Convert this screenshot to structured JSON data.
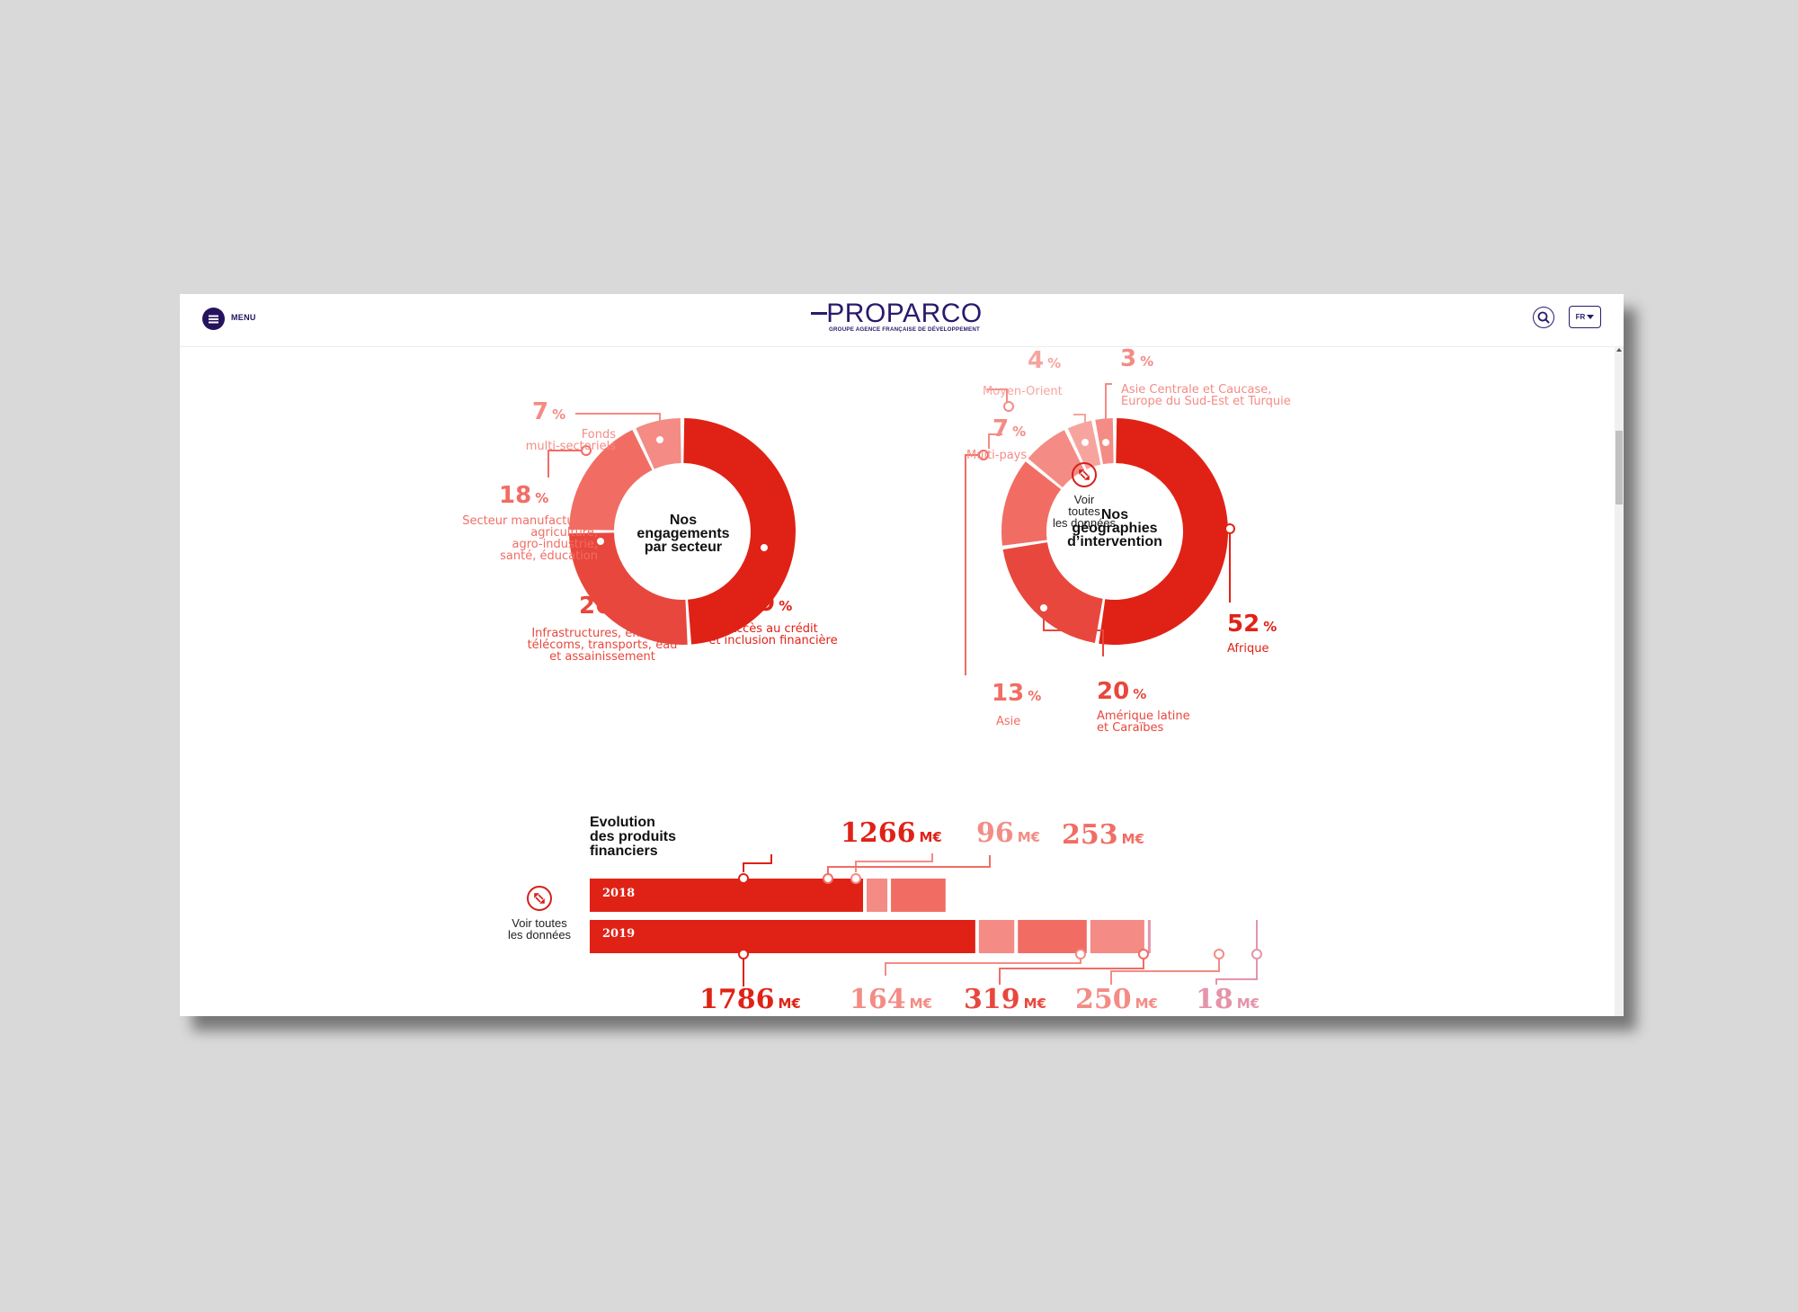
{
  "header": {
    "menu_label": "MENU",
    "logo_title": "PROPARCO",
    "logo_subtitle": "GROUPE AGENCE FRANÇAISE DE DÉVELOPPEMENT",
    "lang": "FR",
    "icons": {
      "menu": "hamburger-icon",
      "search": "search-icon",
      "lang_caret": "caret-down-icon"
    }
  },
  "colors": {
    "brand": "#2a1a6b",
    "red_dark": "#e02216",
    "red_mid": "#e8473d",
    "red_light": "#f16d64",
    "pink": "#f48b85",
    "pink_light": "#f7a49f",
    "mauve": "#e494aa"
  },
  "voir_sector": {
    "line1": "Voir",
    "line2": "toutes",
    "line3": "les données"
  },
  "voir_products": {
    "line1": "Voir toutes",
    "line2": "les données"
  },
  "chart_data": [
    {
      "type": "pie",
      "title": "Nos engagements par secteur",
      "title_lines": [
        "Nos",
        "engagements",
        "par secteur"
      ],
      "categories": [
        "Accès au crédit et inclusion financière",
        "Infrastructures, énergie, télécoms, transports, eau et assainissement",
        "Secteur manufacturier, agriculture, agro-industrie, santé, éducation",
        "Fonds multi-sectoriels"
      ],
      "values": [
        49,
        26,
        18,
        7
      ],
      "unit": "%",
      "labels": [
        {
          "value": "49",
          "unit": "%",
          "lines": [
            "Accès au crédit",
            "et inclusion financière"
          ]
        },
        {
          "value": "26",
          "unit": "%",
          "lines": [
            "Infrastructures, énergie,",
            "télécoms, transports, eau",
            "et assainissement"
          ]
        },
        {
          "value": "18",
          "unit": "%",
          "lines": [
            "Secteur manufacturier,",
            "agriculture,",
            "agro-industrie,",
            "santé, éducation"
          ]
        },
        {
          "value": "7",
          "unit": "%",
          "lines": [
            "Fonds",
            "multi-sectoriels"
          ]
        }
      ]
    },
    {
      "type": "pie",
      "title": "Nos géographies d'intervention",
      "title_lines": [
        "Nos",
        "géographies",
        "d’intervention"
      ],
      "categories": [
        "Afrique",
        "Amérique latine et Caraïbes",
        "Asie",
        "Multi-pays",
        "Moyen-Orient",
        "Asie Centrale et Caucase, Europe du Sud-Est et Turquie"
      ],
      "values": [
        52,
        20,
        13,
        7,
        4,
        3
      ],
      "unit": "%",
      "labels": [
        {
          "value": "52",
          "unit": "%",
          "lines": [
            "Afrique"
          ]
        },
        {
          "value": "20",
          "unit": "%",
          "lines": [
            "Amérique latine",
            "et Caraïbes"
          ]
        },
        {
          "value": "13",
          "unit": "%",
          "lines": [
            "Asie"
          ]
        },
        {
          "value": "7",
          "unit": "%",
          "lines": [
            "Multi-pays"
          ]
        },
        {
          "value": "4",
          "unit": "%",
          "lines": [
            "Moyen-Orient"
          ]
        },
        {
          "value": "3",
          "unit": "%",
          "lines": [
            "Asie Centrale et Caucase,",
            "Europe du Sud-Est et Turquie"
          ]
        }
      ]
    },
    {
      "type": "bar",
      "orientation": "horizontal-stacked",
      "title": "Evolution des produits financiers",
      "title_lines": [
        "Evolution",
        "des produits",
        "financiers"
      ],
      "unit": "M€",
      "categories": [
        "2018",
        "2019"
      ],
      "series_values": {
        "2018": [
          1266,
          96,
          253
        ],
        "2019": [
          1786,
          164,
          319,
          250,
          18
        ]
      },
      "labels_2018": [
        {
          "value": "1266",
          "unit": "M€"
        },
        {
          "value": "96",
          "unit": "M€"
        },
        {
          "value": "253",
          "unit": "M€"
        }
      ],
      "labels_2019": [
        {
          "value": "1786",
          "unit": "M€"
        },
        {
          "value": "164",
          "unit": "M€"
        },
        {
          "value": "319",
          "unit": "M€"
        },
        {
          "value": "250",
          "unit": "M€"
        },
        {
          "value": "18",
          "unit": "M€"
        }
      ]
    }
  ]
}
